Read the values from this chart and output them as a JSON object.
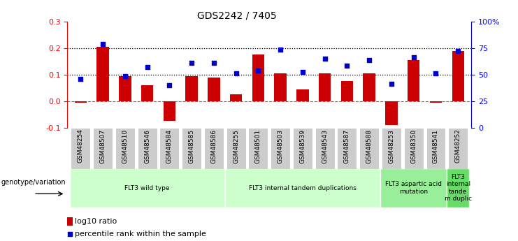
{
  "title": "GDS2242 / 7405",
  "samples": [
    "GSM48254",
    "GSM48507",
    "GSM48510",
    "GSM48546",
    "GSM48584",
    "GSM48585",
    "GSM48586",
    "GSM48255",
    "GSM48501",
    "GSM48503",
    "GSM48539",
    "GSM48543",
    "GSM48587",
    "GSM48588",
    "GSM48253",
    "GSM48350",
    "GSM48541",
    "GSM48252"
  ],
  "log10_ratio": [
    -0.005,
    0.205,
    0.095,
    0.06,
    -0.075,
    0.095,
    0.09,
    0.025,
    0.175,
    0.105,
    0.045,
    0.105,
    0.075,
    0.105,
    -0.09,
    0.155,
    -0.005,
    0.19
  ],
  "percentile_rank": [
    0.085,
    0.215,
    0.095,
    0.13,
    0.06,
    0.145,
    0.145,
    0.105,
    0.115,
    0.195,
    0.11,
    0.16,
    0.135,
    0.155,
    0.065,
    0.165,
    0.105,
    0.19
  ],
  "groups": [
    {
      "label": "FLT3 wild type",
      "start": 0,
      "end": 7,
      "color": "#ccffcc"
    },
    {
      "label": "FLT3 internal tandem duplications",
      "start": 7,
      "end": 14,
      "color": "#ccffcc"
    },
    {
      "label": "FLT3 aspartic acid\nmutation",
      "start": 14,
      "end": 17,
      "color": "#99ee99"
    },
    {
      "label": "FLT3\ninternal\ntande\nm duplic",
      "start": 17,
      "end": 18,
      "color": "#66dd66"
    }
  ],
  "bar_color": "#cc0000",
  "dot_color": "#0000cc",
  "ylim_left": [
    -0.1,
    0.3
  ],
  "yticks_left": [
    -0.1,
    0.0,
    0.1,
    0.2,
    0.3
  ],
  "yticks_right": [
    0,
    25,
    50,
    75,
    100
  ],
  "ytick_right_labels": [
    "0",
    "25",
    "50",
    "75",
    "100%"
  ],
  "hlines": [
    0.1,
    0.2
  ],
  "zero_line_color": "#dd4444",
  "genotype_label": "genotype/variation",
  "legend_bar": "log10 ratio",
  "legend_dot": "percentile rank within the sample",
  "sample_box_color": "#cccccc",
  "bg_color": "#ffffff"
}
